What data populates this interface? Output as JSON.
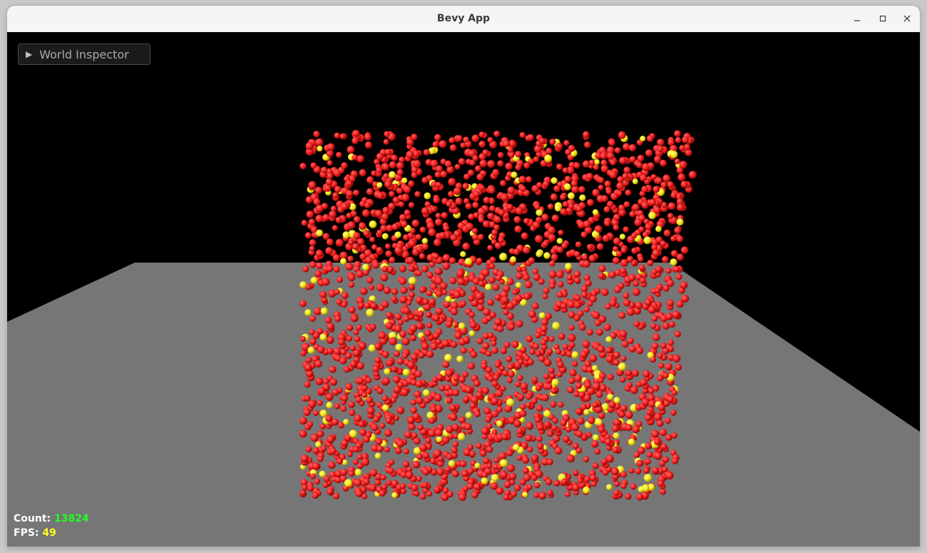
{
  "window": {
    "title": "Bevy App",
    "controls": [
      "minimize-icon",
      "maximize-icon",
      "close-icon"
    ]
  },
  "inspector": {
    "label": "World Inspector",
    "icon": "triangle-right-icon",
    "expanded": false
  },
  "hud": {
    "count_label": "Count: ",
    "count_value": "13824",
    "count_color": "#22ff22",
    "fps_label": "FPS: ",
    "fps_value": "49",
    "fps_color": "#ffff22"
  },
  "scene": {
    "background": "#000000",
    "ground_color": "#767676",
    "particle_colors": [
      "#ee1c1c",
      "#f5e61a"
    ]
  }
}
